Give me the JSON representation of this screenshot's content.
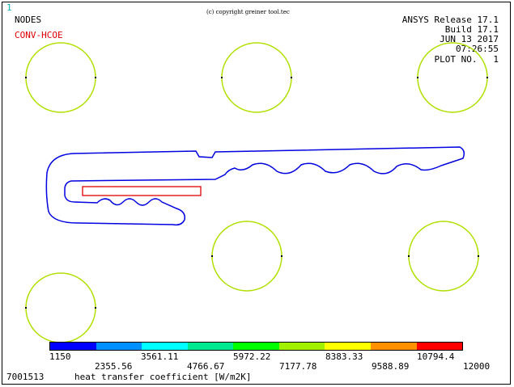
{
  "window_number": "1",
  "copyright": "(c) copyright greiner tool.tec",
  "plot_type": "NODES",
  "display_item": "CONV-HCOE",
  "header": {
    "release": "ANSYS Release 17.1",
    "build": "Build 17.1",
    "date": "JUN 13 2017",
    "time": "07:26:55",
    "plot_no": "PLOT NO.   1"
  },
  "legend": {
    "colors": [
      "#0000ff",
      "#00a0ff",
      "#00ffff",
      "#00e0a0",
      "#00ff00",
      "#a0ff00",
      "#ffff00",
      "#ffa000",
      "#ff0000"
    ],
    "labels_top": [
      "1150",
      "3561.11",
      "5972.22",
      "8383.33",
      "10794.4"
    ],
    "labels_bottom": [
      "2355.56",
      "4766.67",
      "7177.78",
      "9588.89",
      "12000"
    ]
  },
  "footer": {
    "id": "7001513",
    "quantity": "heat transfer coefficient [W/m2K]"
  },
  "colors": {
    "circle": "#b0e000",
    "profile": "#0000e0",
    "insert": "#e00000"
  }
}
